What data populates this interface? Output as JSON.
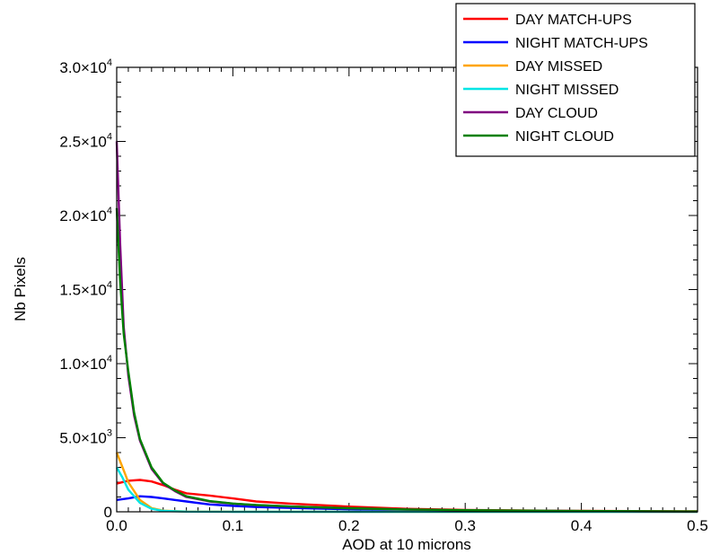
{
  "chart_data": {
    "type": "line",
    "xlabel": "AOD at 10 microns",
    "ylabel": "Nb Pixels",
    "xlim": [
      0,
      0.5
    ],
    "ylim": [
      0,
      30000
    ],
    "legend_position": "top-right",
    "grid": false,
    "x_ticks": [
      {
        "value": 0.0,
        "label": "0.0"
      },
      {
        "value": 0.1,
        "label": "0.1"
      },
      {
        "value": 0.2,
        "label": "0.2"
      },
      {
        "value": 0.3,
        "label": "0.3"
      },
      {
        "value": 0.4,
        "label": "0.4"
      },
      {
        "value": 0.5,
        "label": "0.5"
      }
    ],
    "y_ticks": [
      {
        "value": 0,
        "mantissa": "0",
        "exponent": ""
      },
      {
        "value": 5000,
        "mantissa": "5.0×10",
        "exponent": "3"
      },
      {
        "value": 10000,
        "mantissa": "1.0×10",
        "exponent": "4"
      },
      {
        "value": 15000,
        "mantissa": "1.5×10",
        "exponent": "4"
      },
      {
        "value": 20000,
        "mantissa": "2.0×10",
        "exponent": "4"
      },
      {
        "value": 25000,
        "mantissa": "2.5×10",
        "exponent": "4"
      },
      {
        "value": 30000,
        "mantissa": "3.0×10",
        "exponent": "4"
      }
    ],
    "series": [
      {
        "name": "DAY MATCH-UPS",
        "color": "#ff0000",
        "x": [
          0,
          0.01,
          0.02,
          0.03,
          0.04,
          0.05,
          0.06,
          0.08,
          0.1,
          0.12,
          0.15,
          0.2,
          0.25,
          0.3,
          0.4,
          0.5
        ],
        "y": [
          1900,
          2100,
          2150,
          2050,
          1800,
          1500,
          1250,
          1100,
          900,
          700,
          550,
          350,
          200,
          130,
          60,
          30
        ]
      },
      {
        "name": "NIGHT MATCH-UPS",
        "color": "#0000ff",
        "x": [
          0,
          0.01,
          0.02,
          0.03,
          0.04,
          0.05,
          0.06,
          0.08,
          0.1,
          0.12,
          0.15,
          0.2,
          0.25,
          0.3,
          0.4,
          0.5
        ],
        "y": [
          800,
          900,
          1050,
          1000,
          900,
          800,
          700,
          500,
          400,
          320,
          260,
          170,
          110,
          70,
          30,
          15
        ]
      },
      {
        "name": "DAY MISSED",
        "color": "#ffa500",
        "x": [
          0,
          0.005,
          0.01,
          0.02,
          0.03,
          0.04,
          0.06,
          0.1,
          0.2,
          0.5
        ],
        "y": [
          4000,
          3000,
          2000,
          800,
          250,
          80,
          20,
          5,
          0,
          0
        ]
      },
      {
        "name": "NIGHT MISSED",
        "color": "#00e5e5",
        "x": [
          0,
          0.005,
          0.01,
          0.02,
          0.03,
          0.04,
          0.06,
          0.1,
          0.2,
          0.5
        ],
        "y": [
          3000,
          2300,
          1500,
          600,
          200,
          60,
          15,
          3,
          0,
          0
        ]
      },
      {
        "name": "DAY CLOUD",
        "color": "#800080",
        "x": [
          0,
          0.003,
          0.006,
          0.01,
          0.015,
          0.02,
          0.03,
          0.04,
          0.05,
          0.06,
          0.08,
          0.1,
          0.12,
          0.15,
          0.2,
          0.25,
          0.3,
          0.4,
          0.5
        ],
        "y": [
          25000,
          18000,
          12500,
          9200,
          6500,
          4800,
          2900,
          1900,
          1400,
          1000,
          700,
          550,
          450,
          350,
          230,
          150,
          100,
          50,
          20
        ]
      },
      {
        "name": "NIGHT CLOUD",
        "color": "#008000",
        "x": [
          0,
          0.003,
          0.006,
          0.01,
          0.015,
          0.02,
          0.03,
          0.04,
          0.05,
          0.06,
          0.08,
          0.1,
          0.12,
          0.15,
          0.2,
          0.25,
          0.3,
          0.4,
          0.5
        ],
        "y": [
          20500,
          15500,
          12000,
          9500,
          6700,
          4900,
          3000,
          1950,
          1450,
          1050,
          720,
          560,
          460,
          360,
          240,
          160,
          110,
          55,
          25
        ]
      }
    ]
  }
}
